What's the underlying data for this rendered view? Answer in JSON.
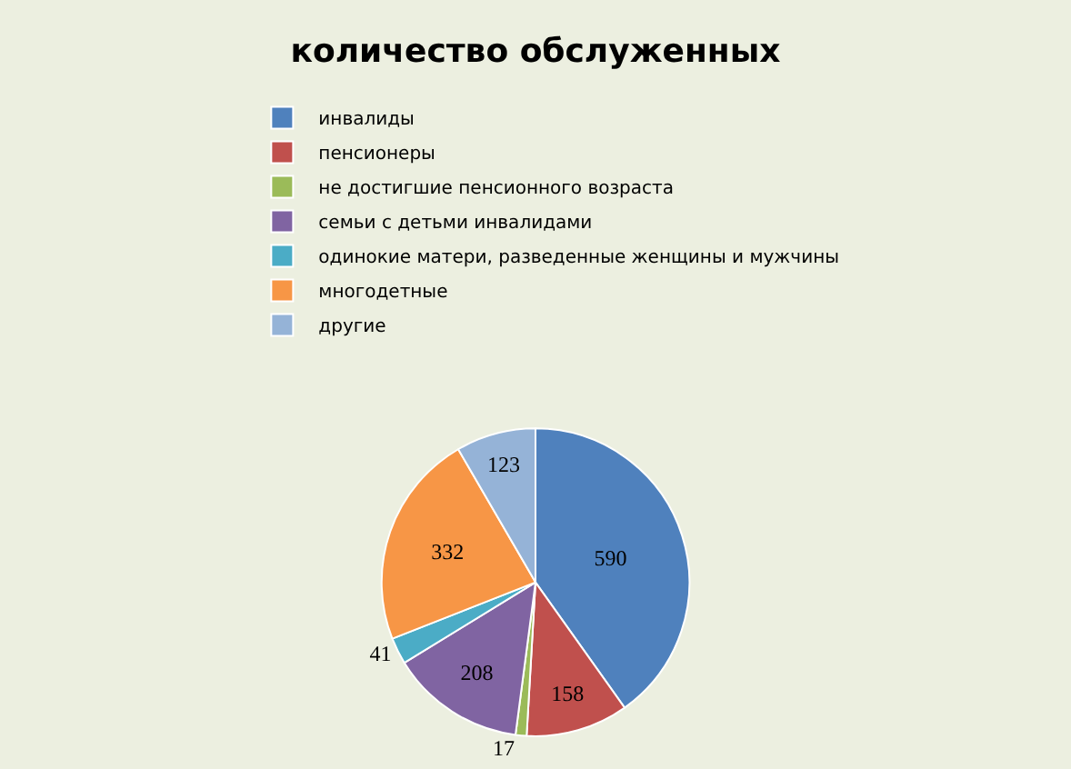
{
  "chart_data": {
    "type": "pie",
    "title": "количество обслуженных",
    "categories": [
      "инвалиды",
      "пенсионеры",
      "не достигшие пенсионного возраста",
      "семьи с детьми инвалидами",
      "одинокие матери, разведенные женщины и мужчины",
      "многодетные",
      "другие"
    ],
    "values": [
      590,
      158,
      17,
      208,
      41,
      332,
      123
    ],
    "colors": [
      "#4f81bd",
      "#c0504d",
      "#9bbb59",
      "#8064a2",
      "#4bacc6",
      "#f79646",
      "#95b3d7"
    ],
    "data_labels": true,
    "legend": "top"
  }
}
